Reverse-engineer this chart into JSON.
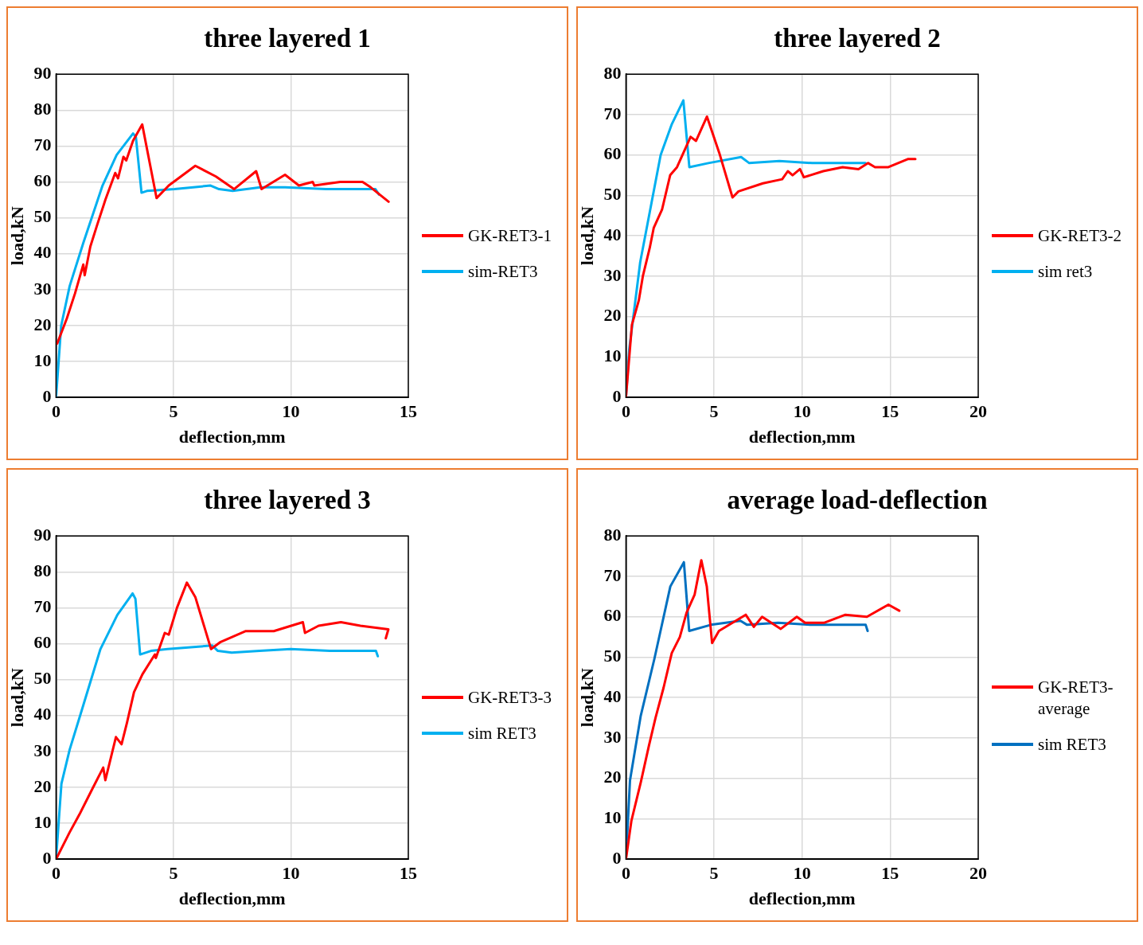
{
  "chart_data": [
    {
      "type": "line",
      "title": "three layered 1",
      "xlabel": "deflection,mm",
      "ylabel": "load,kN",
      "xlim": [
        0,
        15
      ],
      "ylim": [
        0,
        90
      ],
      "xticks": [
        0,
        5,
        10,
        15
      ],
      "yticks": [
        0,
        10,
        20,
        30,
        40,
        50,
        60,
        70,
        80,
        90
      ],
      "grid": true,
      "legend": "right",
      "series": [
        {
          "name": "GK-RET3-1",
          "color": "#ff0000",
          "x": [
            0.05,
            0.46,
            0.81,
            1.16,
            1.22,
            1.46,
            1.75,
            2.1,
            2.52,
            2.64,
            2.87,
            2.99,
            3.28,
            3.67,
            4.28,
            4.8,
            5.93,
            6.81,
            7.58,
            8.52,
            8.75,
            9.75,
            10.34,
            10.93,
            11,
            12.1,
            13.05,
            13.4,
            14.16
          ],
          "values": [
            15,
            22,
            29,
            37,
            34,
            42,
            48,
            55,
            62.5,
            61,
            67,
            66,
            71.5,
            76,
            55.5,
            59,
            64.5,
            61.5,
            58,
            63,
            58,
            62,
            59,
            60,
            59,
            60,
            60,
            58.5,
            54.5
          ]
        },
        {
          "name": "sim-RET3",
          "color": "#00b0f0",
          "x": [
            0,
            0.22,
            0.58,
            1.16,
            1.98,
            2.58,
            3.28,
            3.4,
            3.64,
            3.87,
            5.05,
            6.58,
            6.94,
            7.52,
            8.7,
            9.75,
            11.5,
            13.6,
            13.75
          ],
          "values": [
            0,
            20,
            31,
            43,
            59,
            67.5,
            73.5,
            72.5,
            57,
            57.5,
            58,
            59,
            58,
            57.5,
            58.5,
            58.5,
            58,
            58,
            56.5
          ]
        }
      ]
    },
    {
      "type": "line",
      "title": "three layered 2",
      "xlabel": "deflection,mm",
      "ylabel": "load,kN",
      "xlim": [
        0,
        20
      ],
      "ylim": [
        0,
        80
      ],
      "xticks": [
        0,
        5,
        10,
        15,
        20
      ],
      "yticks": [
        0,
        10,
        20,
        30,
        40,
        50,
        60,
        70,
        80
      ],
      "grid": true,
      "legend": "right",
      "series": [
        {
          "name": "GK-RET3-2",
          "color": "#ff0000",
          "x": [
            0,
            0.34,
            0.73,
            0.96,
            1.35,
            1.58,
            2.05,
            2.51,
            2.9,
            3.67,
            3.98,
            4.6,
            5.3,
            6.05,
            6.39,
            7.78,
            8.87,
            9.19,
            9.46,
            9.88,
            10.1,
            11.2,
            12.3,
            13.2,
            13.75,
            14.14,
            14.9,
            16,
            16.43
          ],
          "values": [
            0,
            18,
            24,
            30,
            37,
            42,
            46.5,
            55,
            57,
            64.5,
            63.5,
            69.5,
            60.5,
            49.5,
            51,
            53,
            54,
            56,
            55,
            56.5,
            54.5,
            56,
            57,
            56.5,
            58,
            57,
            57,
            59,
            59
          ]
        },
        {
          "name": "sim ret3",
          "color": "#00b0f0",
          "x": [
            0,
            0.19,
            0.81,
            1.97,
            2.59,
            3.26,
            3.6,
            4.68,
            6.54,
            7,
            8.71,
            10.57,
            12.1,
            13.6
          ],
          "values": [
            0,
            12,
            33.5,
            60,
            67.5,
            73.5,
            57,
            58,
            59.5,
            58,
            58.5,
            58,
            58,
            58
          ]
        }
      ]
    },
    {
      "type": "line",
      "title": "three layered 3",
      "xlabel": "deflection,mm",
      "ylabel": "load,kN",
      "xlim": [
        0,
        15
      ],
      "ylim": [
        0,
        90
      ],
      "xticks": [
        0,
        5,
        10,
        15
      ],
      "yticks": [
        0,
        10,
        20,
        30,
        40,
        50,
        60,
        70,
        80,
        90
      ],
      "grid": true,
      "legend": "right",
      "series": [
        {
          "name": "GK-RET3-3",
          "color": "#ff0000",
          "x": [
            0,
            0.58,
            1,
            1.54,
            2.01,
            2.1,
            2.55,
            2.79,
            3.02,
            3.32,
            3.68,
            4.21,
            4.25,
            4.63,
            4.8,
            5.15,
            5.57,
            5.93,
            6.6,
            7.01,
            8.08,
            9.27,
            10.51,
            10.6,
            11.18,
            12.13,
            12.96,
            14.15,
            14.04
          ],
          "values": [
            0,
            7.5,
            12.5,
            19.5,
            25.5,
            22,
            34,
            32,
            38,
            46.5,
            51.5,
            57,
            56,
            63,
            62.5,
            70,
            77,
            73,
            58.5,
            60.5,
            63.5,
            63.5,
            66,
            63,
            65,
            66,
            65,
            64,
            61.5
          ]
        },
        {
          "name": "sim RET3",
          "color": "#00b0f0",
          "x": [
            0,
            0.23,
            0.58,
            1.12,
            1.89,
            2.61,
            3.26,
            3.38,
            3.58,
            4.04,
            4.75,
            6.65,
            6.89,
            7.48,
            8.67,
            9.99,
            11.65,
            13.62,
            13.7
          ],
          "values": [
            0,
            21,
            30.5,
            42,
            58.5,
            68,
            74,
            72.5,
            57,
            58,
            58.5,
            59.5,
            58,
            57.5,
            58,
            58.5,
            58,
            58,
            56.5
          ]
        }
      ]
    },
    {
      "type": "line",
      "title": "average load-deflection",
      "xlabel": "deflection,mm",
      "ylabel": "load,kN",
      "xlim": [
        0,
        20
      ],
      "ylim": [
        0,
        80
      ],
      "xticks": [
        0,
        5,
        10,
        15,
        20
      ],
      "yticks": [
        0,
        10,
        20,
        30,
        40,
        50,
        60,
        70,
        80
      ],
      "grid": true,
      "legend": "right",
      "series": [
        {
          "name": "GK-RET3-average",
          "color": "#ff0000",
          "x": [
            0,
            0.31,
            0.84,
            1.3,
            1.68,
            2.14,
            2.6,
            3.06,
            3.44,
            3.9,
            4.28,
            4.59,
            4.89,
            5.28,
            6.8,
            7.26,
            7.73,
            8.79,
            9.7,
            10.17,
            11.24,
            12.46,
            13.68,
            14.9,
            15.52
          ],
          "values": [
            0,
            9.5,
            19,
            28,
            35,
            42.5,
            51,
            55,
            61,
            65.5,
            74,
            67.5,
            53.5,
            56.5,
            60.5,
            57.5,
            60,
            57,
            60,
            58.5,
            58.5,
            60.5,
            60,
            63,
            61.5
          ]
        },
        {
          "name": "sim RET3",
          "color": "#0070c0",
          "x": [
            0,
            0.23,
            0.84,
            1.61,
            2.52,
            3.29,
            3.59,
            4.82,
            6.5,
            6.88,
            8.64,
            10.47,
            12,
            13.61,
            13.72
          ],
          "values": [
            0,
            19.5,
            35.5,
            49.5,
            67.5,
            73.5,
            56.5,
            58,
            59,
            58,
            58.5,
            58,
            58,
            58,
            56.5
          ]
        }
      ]
    }
  ]
}
